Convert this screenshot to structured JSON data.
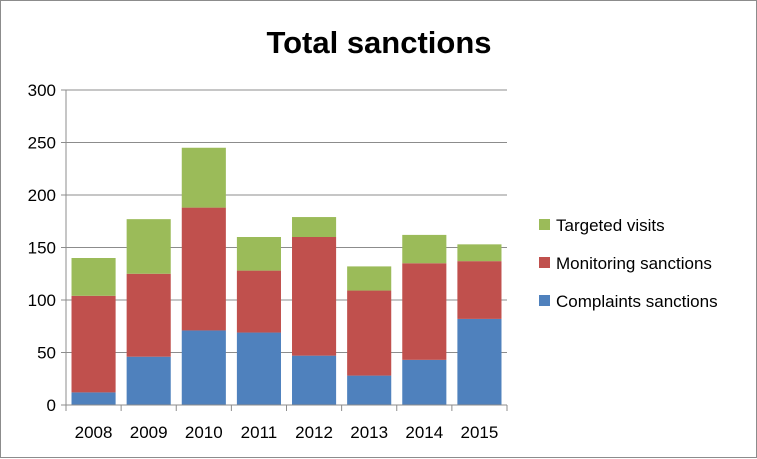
{
  "chart_data": {
    "type": "bar",
    "stacked": true,
    "title": "Total sanctions",
    "xlabel": "",
    "ylabel": "",
    "categories": [
      "2008",
      "2009",
      "2010",
      "2011",
      "2012",
      "2013",
      "2014",
      "2015"
    ],
    "ylim": [
      0,
      300
    ],
    "yticks": [
      "0",
      "50",
      "100",
      "150",
      "200",
      "250",
      "300"
    ],
    "grid": true,
    "legend_position": "right",
    "series": [
      {
        "name": "Complaints sanctions",
        "color": "#4f81bd",
        "values": [
          12,
          46,
          71,
          69,
          47,
          28,
          43,
          82
        ]
      },
      {
        "name": "Monitoring sanctions",
        "color": "#c0504d",
        "values": [
          92,
          79,
          117,
          59,
          113,
          81,
          92,
          55
        ]
      },
      {
        "name": "Targeted visits",
        "color": "#9bbb59",
        "values": [
          36,
          52,
          57,
          32,
          19,
          23,
          27,
          16
        ]
      }
    ],
    "legend_order": [
      2,
      1,
      0
    ]
  }
}
